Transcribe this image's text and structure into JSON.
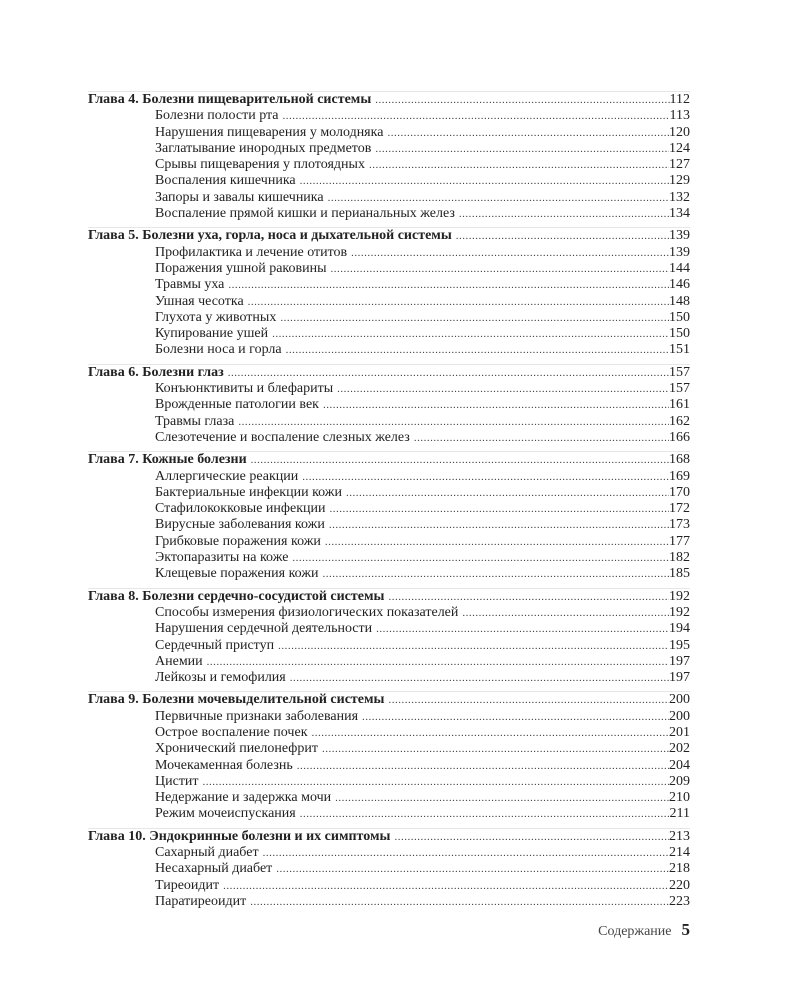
{
  "toc": [
    {
      "title": "Глава 4. Болезни пищеварительной системы",
      "page": "112",
      "items": [
        {
          "title": "Болезни полости рта",
          "page": "113"
        },
        {
          "title": "Нарушения пищеварения у молодняка",
          "page": "120"
        },
        {
          "title": "Заглатывание инородных предметов",
          "page": "124"
        },
        {
          "title": "Срывы пищеварения у плотоядных",
          "page": "127"
        },
        {
          "title": "Воспаления кишечника",
          "page": "129"
        },
        {
          "title": "Запоры и завалы кишечника",
          "page": "132"
        },
        {
          "title": "Воспаление прямой кишки и перианальных желез",
          "page": "134"
        }
      ]
    },
    {
      "title": "Глава 5. Болезни уха, горла, носа и дыхательной системы",
      "page": "139",
      "items": [
        {
          "title": "Профилактика и лечение отитов",
          "page": "139"
        },
        {
          "title": "Поражения ушной раковины",
          "page": "144"
        },
        {
          "title": "Травмы уха",
          "page": "146"
        },
        {
          "title": "Ушная чесотка",
          "page": "148"
        },
        {
          "title": "Глухота у животных",
          "page": "150"
        },
        {
          "title": "Купирование ушей",
          "page": "150"
        },
        {
          "title": "Болезни носа и горла",
          "page": "151"
        }
      ]
    },
    {
      "title": "Глава 6. Болезни глаз",
      "page": "157",
      "items": [
        {
          "title": "Конъюнктивиты и блефариты",
          "page": "157"
        },
        {
          "title": "Врожденные патологии век",
          "page": "161"
        },
        {
          "title": "Травмы глаза",
          "page": "162"
        },
        {
          "title": "Слезотечение и воспаление слезных желез",
          "page": "166"
        }
      ]
    },
    {
      "title": "Глава 7. Кожные болезни",
      "page": "168",
      "items": [
        {
          "title": "Аллергические реакции",
          "page": "169"
        },
        {
          "title": "Бактериальные инфекции кожи",
          "page": "170"
        },
        {
          "title": "Стафилококковые инфекции",
          "page": "172"
        },
        {
          "title": "Вирусные заболевания кожи",
          "page": "173"
        },
        {
          "title": "Грибковые поражения кожи",
          "page": "177"
        },
        {
          "title": "Эктопаразиты на коже",
          "page": "182"
        },
        {
          "title": "Клещевые поражения кожи",
          "page": "185"
        }
      ]
    },
    {
      "title": "Глава 8. Болезни сердечно-сосудистой системы",
      "page": "192",
      "items": [
        {
          "title": "Способы измерения физиологических показателей",
          "page": "192"
        },
        {
          "title": "Нарушения сердечной деятельности",
          "page": "194"
        },
        {
          "title": "Сердечный приступ",
          "page": "195"
        },
        {
          "title": "Анемии",
          "page": "197"
        },
        {
          "title": "Лейкозы и гемофилия",
          "page": "197"
        }
      ]
    },
    {
      "title": "Глава 9. Болезни мочевыделительной системы",
      "page": "200",
      "items": [
        {
          "title": "Первичные признаки заболевания",
          "page": "200"
        },
        {
          "title": "Острое воспаление почек",
          "page": "201"
        },
        {
          "title": "Хронический пиелонефрит",
          "page": "202"
        },
        {
          "title": "Мочекаменная болезнь",
          "page": "204"
        },
        {
          "title": "Цистит",
          "page": "209"
        },
        {
          "title": "Недержание и задержка мочи",
          "page": "210"
        },
        {
          "title": "Режим мочеиспускания",
          "page": "211"
        }
      ]
    },
    {
      "title": "Глава 10. Эндокринные болезни и их симптомы",
      "page": "213",
      "items": [
        {
          "title": "Сахарный диабет",
          "page": "214"
        },
        {
          "title": "Несахарный диабет",
          "page": "218"
        },
        {
          "title": "Тиреоидит",
          "page": "220"
        },
        {
          "title": "Паратиреоидит",
          "page": "223"
        }
      ]
    }
  ],
  "footer": {
    "section": "Содержание",
    "page_number": "5"
  }
}
